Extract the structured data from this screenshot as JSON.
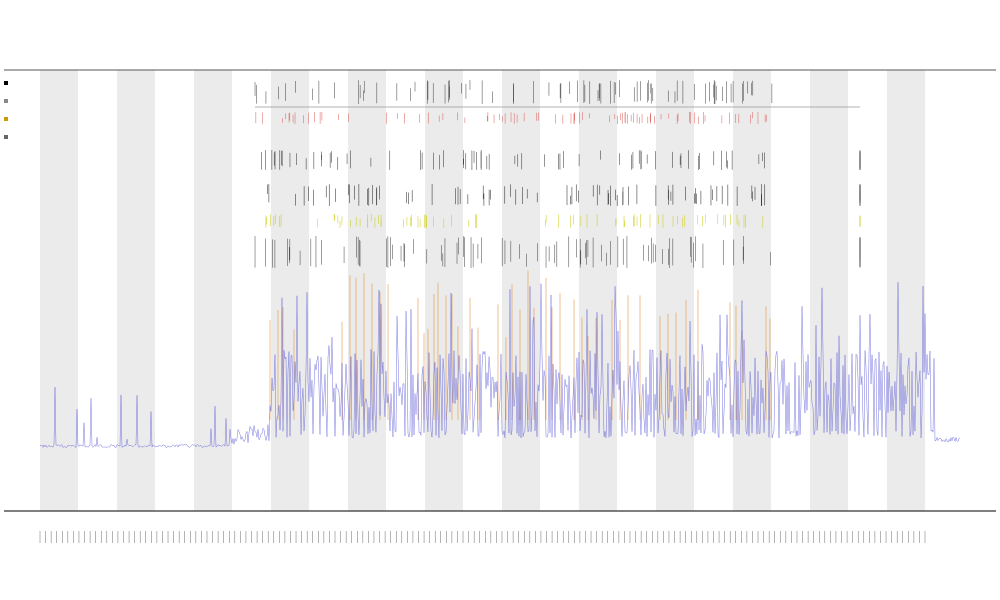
{
  "chart_data": {
    "type": "line",
    "title": "",
    "subtitle_lines": [
      "",
      ""
    ],
    "xlabel": "",
    "ylabel": "",
    "shaded_bands": 12,
    "grid": false,
    "legend_position": "top-left",
    "legend_items": [
      {
        "name": "",
        "color": "#000000"
      },
      {
        "name": "",
        "color": "#888888"
      },
      {
        "name": "",
        "color": "#cc9900"
      },
      {
        "name": "",
        "color": "#666666"
      }
    ],
    "series": [
      {
        "name": "",
        "color": "#4a4ad6"
      },
      {
        "name": "",
        "color": "#e08a2a"
      }
    ],
    "event_rows": [
      {
        "name": "",
        "color": "#333333"
      },
      {
        "name": "",
        "color": "#d9534f"
      },
      {
        "name": "",
        "color": "#222222"
      },
      {
        "name": "",
        "color": "#111111"
      },
      {
        "name": "",
        "color": "#c8c800"
      },
      {
        "name": "",
        "color": "#333333"
      }
    ],
    "x_tick_count": 160
  },
  "colors": {
    "band": "#ebebeb",
    "axis": "#333333",
    "signal": "#4a4ad6",
    "spike": "#e08a2a"
  }
}
